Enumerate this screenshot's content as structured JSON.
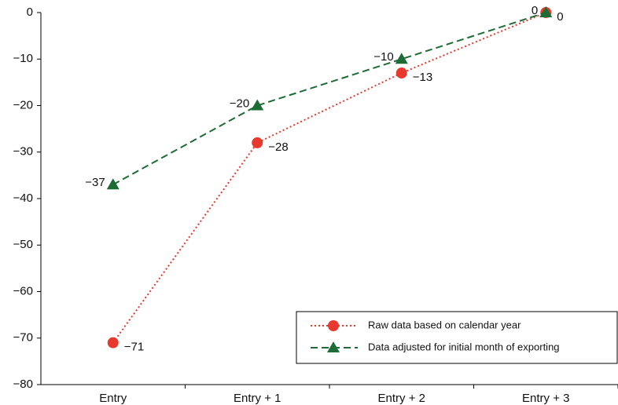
{
  "chart_data": {
    "type": "line",
    "categories": [
      "Entry",
      "Entry + 1",
      "Entry + 2",
      "Entry + 3"
    ],
    "series": [
      {
        "name": "Raw data based on calendar year",
        "color": "#e8392f",
        "line_style": "dotted",
        "marker": "circle",
        "values": [
          -71,
          -28,
          -13,
          0
        ],
        "value_labels": [
          "−71",
          "−28",
          "−13",
          "0"
        ]
      },
      {
        "name": "Data adjusted for initial month of exporting",
        "color": "#1d6b35",
        "line_style": "dashed",
        "marker": "triangle",
        "values": [
          -37,
          -20,
          -10,
          0
        ],
        "value_labels": [
          "−37",
          "−20",
          "−10",
          "0"
        ]
      }
    ],
    "ylim": [
      -80,
      0
    ],
    "yticks": [
      0,
      {
        "value": -10,
        "label": "−10"
      },
      {
        "value": -20,
        "label": "−20"
      },
      {
        "value": -30,
        "label": "−30"
      },
      {
        "value": -40,
        "label": "−40"
      },
      {
        "value": -50,
        "label": "−50"
      },
      {
        "value": -60,
        "label": "−60"
      },
      {
        "value": -70,
        "label": "−70"
      },
      {
        "value": -80,
        "label": "−80"
      }
    ],
    "grid": false,
    "legend": "lower right"
  }
}
